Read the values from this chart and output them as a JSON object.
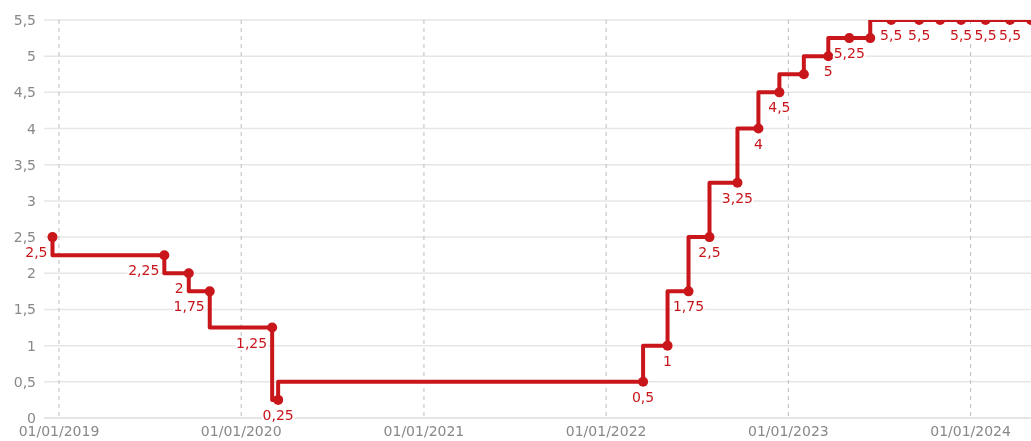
{
  "chart_data": {
    "type": "step",
    "x": [
      "2018-12-19",
      "2019-07-31",
      "2019-09-18",
      "2019-10-30",
      "2020-03-03",
      "2020-03-15",
      "2022-03-16",
      "2022-05-04",
      "2022-06-15",
      "2022-07-27",
      "2022-09-21",
      "2022-11-02",
      "2022-12-14",
      "2023-02-01",
      "2023-03-22",
      "2023-05-03",
      "2023-06-14",
      "2023-07-26",
      "2023-09-20",
      "2023-11-01",
      "2023-12-13",
      "2024-01-31",
      "2024-03-20",
      "2024-05-01"
    ],
    "series": [
      {
        "color": "#c8161b",
        "values": [
          2.5,
          2.25,
          2,
          1.75,
          1.25,
          0.25,
          0.5,
          1,
          1.75,
          2.5,
          3.25,
          4,
          4.5,
          4.75,
          5,
          5.25,
          5.25,
          5.5,
          5.5,
          5.5,
          5.5,
          5.5,
          5.5,
          5.5
        ],
        "value_labels": [
          "2,5",
          "2,25",
          "2",
          "1,75",
          "1,25",
          "0,25",
          "0,5",
          "1",
          "1,75",
          "2,5",
          "3,25",
          "4",
          "4,5",
          null,
          "5",
          "5,25",
          null,
          "5,5",
          "5,5",
          null,
          "5,5",
          "5,5",
          "5,5",
          null
        ]
      }
    ],
    "xlim": [
      "2018-12-02",
      "2024-05-01"
    ],
    "xticks": [
      {
        "value": "2019-01-01",
        "label": "01/01/2019"
      },
      {
        "value": "2020-01-01",
        "label": "01/01/2020"
      },
      {
        "value": "2021-01-01",
        "label": "01/01/2021"
      },
      {
        "value": "2022-01-01",
        "label": "01/01/2022"
      },
      {
        "value": "2023-01-01",
        "label": "01/01/2023"
      },
      {
        "value": "2024-01-01",
        "label": "01/01/2024"
      }
    ],
    "ylim": [
      0,
      5.5
    ],
    "yticks": [
      {
        "value": 0,
        "label": "0"
      },
      {
        "value": 0.5,
        "label": "0,5"
      },
      {
        "value": 1,
        "label": "1"
      },
      {
        "value": 1.5,
        "label": "1,5"
      },
      {
        "value": 2,
        "label": "2"
      },
      {
        "value": 2.5,
        "label": "2,5"
      },
      {
        "value": 3,
        "label": "3"
      },
      {
        "value": 3.5,
        "label": "3,5"
      },
      {
        "value": 4,
        "label": "4"
      },
      {
        "value": 4.5,
        "label": "4,5"
      },
      {
        "value": 5,
        "label": "5"
      },
      {
        "value": 5.5,
        "label": "5,5"
      }
    ],
    "grid": true,
    "marker": "circle",
    "legend": false
  }
}
